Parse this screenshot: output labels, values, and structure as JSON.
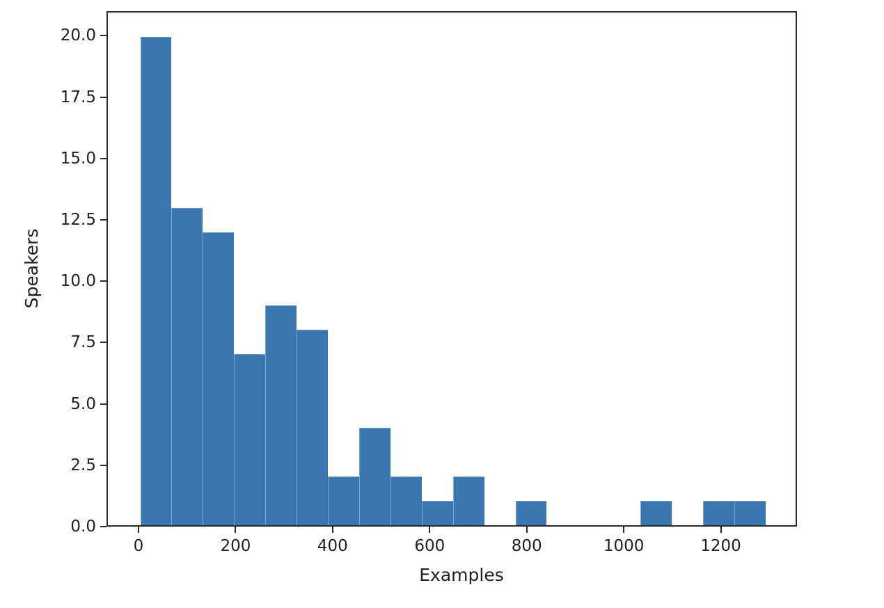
{
  "figure": {
    "background": "#ffffff",
    "frame_color": "#2b2b2b",
    "text_color": "#1f1f1f"
  },
  "chart_data": {
    "type": "bar",
    "subtype": "histogram",
    "title": "",
    "xlabel": "Examples",
    "ylabel": "Speakers",
    "bar_color": "#3b76b0",
    "grid": false,
    "legend": null,
    "xlim": [
      -66,
      1357
    ],
    "ylim": [
      0,
      21
    ],
    "bin_edges": [
      1.0,
      65.7,
      130.4,
      195.1,
      259.8,
      324.5,
      389.2,
      453.9,
      518.6,
      583.3,
      648.0,
      712.7,
      777.4,
      842.1,
      906.8,
      971.5,
      1036.2,
      1100.9,
      1165.6,
      1230.3,
      1295.0
    ],
    "counts": [
      20,
      13,
      12,
      7,
      9,
      8,
      2,
      4,
      2,
      1,
      2,
      0,
      1,
      0,
      0,
      0,
      1,
      0,
      1,
      1
    ],
    "xticks": {
      "values": [
        0,
        200,
        400,
        600,
        800,
        1000,
        1200
      ],
      "labels": [
        "0",
        "200",
        "400",
        "600",
        "800",
        "1000",
        "1200"
      ]
    },
    "yticks": {
      "values": [
        0.0,
        2.5,
        5.0,
        7.5,
        10.0,
        12.5,
        15.0,
        17.5,
        20.0
      ],
      "labels": [
        "0.0",
        "2.5",
        "5.0",
        "7.5",
        "10.0",
        "12.5",
        "15.0",
        "17.5",
        "20.0"
      ]
    }
  }
}
